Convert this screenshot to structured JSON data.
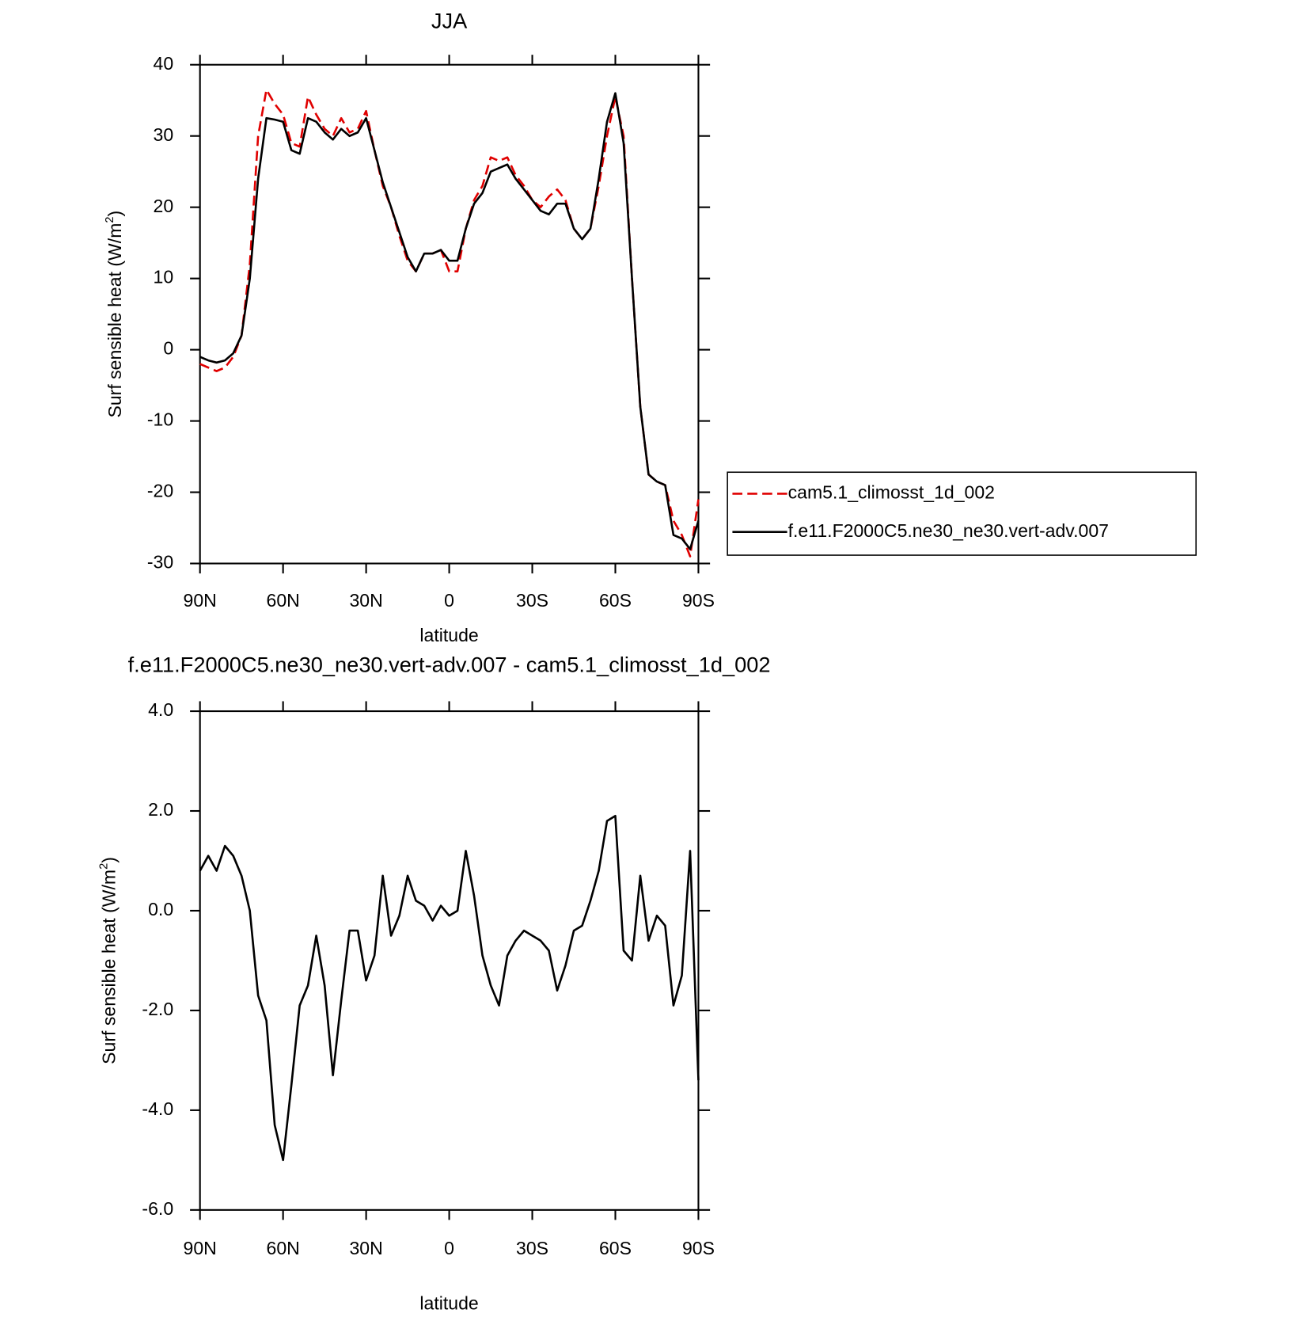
{
  "chart_data": [
    {
      "type": "line",
      "title": "JJA",
      "xlabel": "latitude",
      "ylabel": [
        "Surf sensible heat (W/m",
        "2",
        ")"
      ],
      "x": [
        90,
        87,
        84,
        81,
        78,
        75,
        72,
        69,
        66,
        63,
        60,
        57,
        54,
        51,
        48,
        45,
        42,
        39,
        36,
        33,
        30,
        27,
        24,
        21,
        18,
        15,
        12,
        9,
        6,
        3,
        0,
        -3,
        -6,
        -9,
        -12,
        -15,
        -18,
        -21,
        -24,
        -27,
        -30,
        -33,
        -36,
        -39,
        -42,
        -45,
        -48,
        -51,
        -54,
        -57,
        -60,
        -63,
        -66,
        -69,
        -72,
        -75,
        -78,
        -81,
        -84,
        -87,
        -90
      ],
      "series": [
        {
          "name": "cam5.1_climosst_1d_002",
          "color": "#e00000",
          "line_style": "dashed",
          "values": [
            -2,
            -2.5,
            -3,
            -2.5,
            -1,
            2,
            12,
            30,
            36.5,
            34.5,
            33,
            29,
            28.5,
            35.5,
            33,
            31,
            30,
            32.5,
            30.5,
            31,
            33.5,
            28,
            23,
            20,
            16,
            12.5,
            11,
            13.5,
            13.5,
            14,
            11,
            11,
            17,
            21,
            23,
            27,
            26.5,
            27,
            24.5,
            23,
            21,
            20,
            21.5,
            22.5,
            21,
            17,
            15.5,
            17,
            23,
            30,
            35.5,
            30,
            10,
            -8,
            -17.5,
            -18.5,
            -19,
            -24,
            -26,
            -29,
            -21
          ]
        },
        {
          "name": "f.e11.F2000C5.ne30_ne30.vert-adv.007",
          "color": "#000000",
          "line_style": "solid",
          "values": [
            -1,
            -1.5,
            -1.8,
            -1.5,
            -0.5,
            2,
            10,
            24,
            32.5,
            32.3,
            32,
            28,
            27.5,
            32.5,
            32,
            30.5,
            29.5,
            31,
            30,
            30.5,
            32.5,
            28,
            23.5,
            20,
            16.5,
            13,
            11,
            13.5,
            13.5,
            14,
            12.5,
            12.5,
            17,
            20.5,
            22,
            25,
            25.5,
            26,
            24,
            22.5,
            21,
            19.5,
            19,
            20.5,
            20.5,
            17,
            15.5,
            17,
            24,
            32,
            36,
            29,
            10,
            -8,
            -17.5,
            -18.5,
            -19,
            -26,
            -26.5,
            -28,
            -24
          ]
        }
      ],
      "xlim": [
        90,
        -90
      ],
      "xticks": [
        {
          "value": 90,
          "label": "90N"
        },
        {
          "value": 60,
          "label": "60N"
        },
        {
          "value": 30,
          "label": "30N"
        },
        0,
        {
          "value": -30,
          "label": "30S"
        },
        {
          "value": -60,
          "label": "60S"
        },
        {
          "value": -90,
          "label": "90S"
        }
      ],
      "ylim": [
        -30,
        40
      ],
      "yticks": [
        40,
        30,
        20,
        10,
        0,
        -10,
        -20,
        -30
      ],
      "legend_position": "right"
    },
    {
      "type": "line",
      "title": "f.e11.F2000C5.ne30_ne30.vert-adv.007 - cam5.1_climosst_1d_002",
      "xlabel": "latitude",
      "ylabel": [
        "Surf sensible heat (W/m",
        "2",
        ")"
      ],
      "x": [
        90,
        87,
        84,
        81,
        78,
        75,
        72,
        69,
        66,
        63,
        60,
        57,
        54,
        51,
        48,
        45,
        42,
        39,
        36,
        33,
        30,
        27,
        24,
        21,
        18,
        15,
        12,
        9,
        6,
        3,
        0,
        -3,
        -6,
        -9,
        -12,
        -15,
        -18,
        -21,
        -24,
        -27,
        -30,
        -33,
        -36,
        -39,
        -42,
        -45,
        -48,
        -51,
        -54,
        -57,
        -60,
        -63,
        -66,
        -69,
        -72,
        -75,
        -78,
        -81,
        -84,
        -87,
        -90
      ],
      "color": "#000000",
      "values": [
        0.8,
        1.1,
        0.8,
        1.3,
        1.1,
        0.7,
        0,
        -1.7,
        -2.2,
        -4.3,
        -5.0,
        -3.5,
        -1.9,
        -1.5,
        -0.5,
        -1.5,
        -3.3,
        -1.8,
        -0.4,
        -0.4,
        -1.4,
        -0.9,
        0.7,
        -0.5,
        -0.1,
        0.7,
        0.2,
        0.1,
        -0.2,
        0.1,
        -0.1,
        0.0,
        1.2,
        0.3,
        -0.9,
        -1.5,
        -1.9,
        -0.9,
        -0.6,
        -0.4,
        -0.5,
        -0.6,
        -0.8,
        -1.6,
        -1.1,
        -0.4,
        -0.3,
        0.2,
        0.8,
        1.8,
        1.9,
        -0.8,
        -1.0,
        0.7,
        -0.6,
        -0.1,
        -0.3,
        -1.9,
        -1.3,
        1.2,
        -3.4
      ],
      "xlim": [
        90,
        -90
      ],
      "xticks": [
        {
          "value": 90,
          "label": "90N"
        },
        {
          "value": 60,
          "label": "60N"
        },
        {
          "value": 30,
          "label": "30N"
        },
        0,
        {
          "value": -30,
          "label": "30S"
        },
        {
          "value": -60,
          "label": "60S"
        },
        {
          "value": -90,
          "label": "90S"
        }
      ],
      "ylim": [
        -6,
        4
      ],
      "yticks": [
        {
          "value": 4,
          "label": "4.0"
        },
        {
          "value": 2,
          "label": "2.0"
        },
        {
          "value": 0,
          "label": "0.0"
        },
        {
          "value": -2,
          "label": "-2.0"
        },
        {
          "value": -4,
          "label": "-4.0"
        },
        {
          "value": -6,
          "label": "-6.0"
        }
      ]
    }
  ]
}
